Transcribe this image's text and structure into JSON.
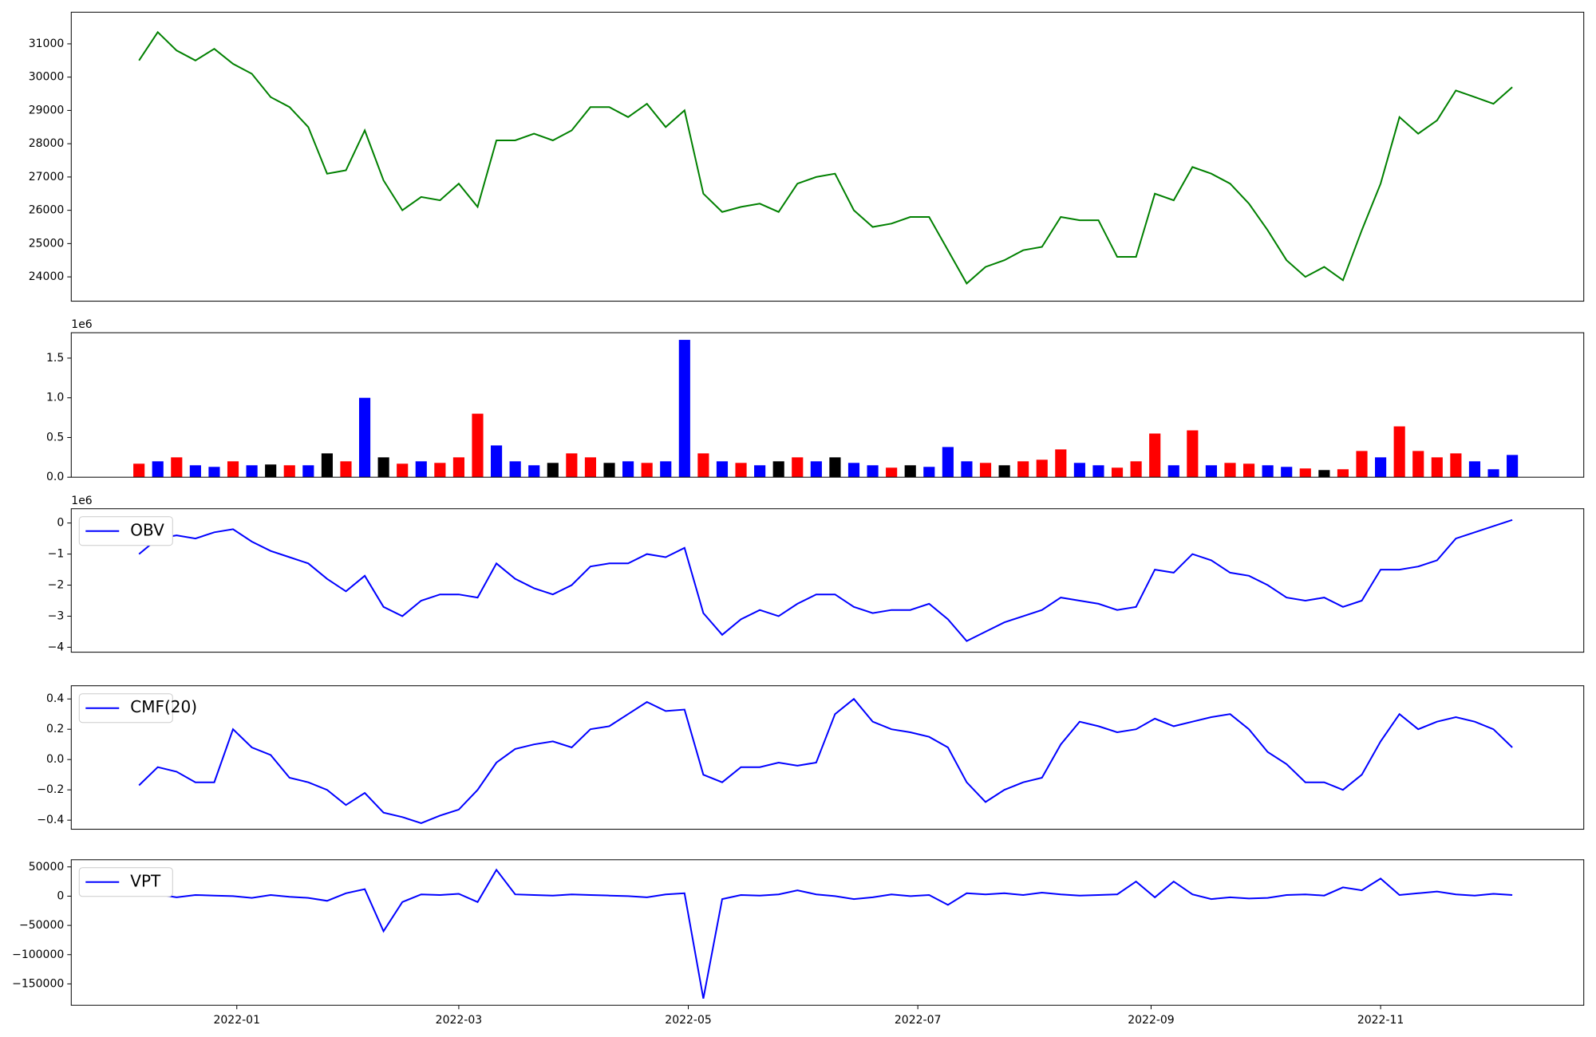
{
  "chart_data": [
    {
      "type": "line",
      "color": "green",
      "x": [
        18967,
        18972,
        18977,
        18982,
        18987,
        18992,
        18997,
        19002,
        19007,
        19012,
        19017,
        19022,
        19027,
        19032,
        19037,
        19042,
        19047,
        19052,
        19057,
        19062,
        19067,
        19072,
        19077,
        19082,
        19087,
        19092,
        19097,
        19102,
        19107,
        19112,
        19117,
        19122,
        19127,
        19132,
        19137,
        19142,
        19147,
        19152,
        19157,
        19162,
        19167,
        19172,
        19177,
        19182,
        19187,
        19192,
        19197,
        19202,
        19207,
        19212,
        19217,
        19222,
        19227,
        19232,
        19237,
        19242,
        19247,
        19252,
        19257,
        19262,
        19267,
        19272,
        19277,
        19282,
        19287,
        19292,
        19297,
        19302,
        19307,
        19312,
        19317,
        19322,
        19327,
        19332
      ],
      "values": [
        30500,
        31350,
        30800,
        30500,
        30850,
        30400,
        30100,
        29400,
        29100,
        28500,
        27100,
        27200,
        28400,
        26900,
        26000,
        26400,
        26300,
        26800,
        26100,
        28100,
        28100,
        28300,
        28100,
        28400,
        29100,
        29100,
        28800,
        29200,
        28500,
        29000,
        26500,
        25950,
        26100,
        26200,
        25950,
        26800,
        27000,
        27100,
        26000,
        25500,
        25600,
        25800,
        25800,
        24800,
        23800,
        24300,
        24500,
        24800,
        24900,
        25800,
        25700,
        25700,
        24600,
        24600,
        26500,
        26300,
        27300,
        27100,
        26800,
        26200,
        25400,
        24500,
        24000,
        24300,
        23900,
        25400,
        26800,
        28800,
        28300,
        28700,
        29600,
        29400,
        29200,
        29700
      ],
      "xlim": [
        18949,
        19351
      ],
      "ylim": [
        23270,
        31950
      ],
      "yticks": [
        24000,
        25000,
        26000,
        27000,
        28000,
        29000,
        30000,
        31000
      ]
    },
    {
      "type": "bar",
      "y_offset_label": "1e6",
      "x": [
        18967,
        18972,
        18977,
        18982,
        18987,
        18992,
        18997,
        19002,
        19007,
        19012,
        19017,
        19022,
        19027,
        19032,
        19037,
        19042,
        19047,
        19052,
        19057,
        19062,
        19067,
        19072,
        19077,
        19082,
        19087,
        19092,
        19097,
        19102,
        19107,
        19112,
        19117,
        19122,
        19127,
        19132,
        19137,
        19142,
        19147,
        19152,
        19157,
        19162,
        19167,
        19172,
        19177,
        19182,
        19187,
        19192,
        19197,
        19202,
        19207,
        19212,
        19217,
        19222,
        19227,
        19232,
        19237,
        19242,
        19247,
        19252,
        19257,
        19262,
        19267,
        19272,
        19277,
        19282,
        19287,
        19292,
        19297,
        19302,
        19307,
        19312,
        19317,
        19322,
        19327,
        19332
      ],
      "values": [
        170000,
        200000,
        250000,
        150000,
        130000,
        200000,
        150000,
        160000,
        150000,
        150000,
        300000,
        200000,
        1000000,
        250000,
        170000,
        200000,
        180000,
        250000,
        800000,
        400000,
        200000,
        150000,
        180000,
        300000,
        250000,
        180000,
        200000,
        180000,
        200000,
        1730000,
        300000,
        200000,
        180000,
        150000,
        200000,
        250000,
        200000,
        250000,
        180000,
        150000,
        120000,
        150000,
        130000,
        380000,
        200000,
        180000,
        150000,
        200000,
        220000,
        350000,
        180000,
        150000,
        120000,
        200000,
        550000,
        150000,
        590000,
        150000,
        180000,
        170000,
        150000,
        130000,
        110000,
        90000,
        100000,
        330000,
        250000,
        640000,
        330000,
        250000,
        300000,
        200000,
        100000,
        280000
      ],
      "colors": [
        "red",
        "blue",
        "red",
        "blue",
        "blue",
        "red",
        "blue",
        "black",
        "red",
        "blue",
        "black",
        "red",
        "blue",
        "black",
        "red",
        "blue",
        "red",
        "red",
        "red",
        "blue",
        "blue",
        "blue",
        "black",
        "red",
        "red",
        "black",
        "blue",
        "red",
        "blue",
        "blue",
        "red",
        "blue",
        "red",
        "blue",
        "black",
        "red",
        "blue",
        "black",
        "blue",
        "blue",
        "red",
        "black",
        "blue",
        "blue",
        "blue",
        "red",
        "black",
        "red",
        "red",
        "red",
        "blue",
        "blue",
        "red",
        "red",
        "red",
        "blue",
        "red",
        "blue",
        "red",
        "red",
        "blue",
        "blue",
        "red",
        "black",
        "red",
        "red",
        "blue",
        "red",
        "red",
        "red",
        "red",
        "blue",
        "blue",
        "blue"
      ],
      "xlim": [
        18949,
        19351
      ],
      "ylim": [
        0,
        1820000
      ],
      "yticks": [
        {
          "value": 0,
          "label": "0.0"
        },
        {
          "value": 500000,
          "label": "0.5"
        },
        {
          "value": 1000000,
          "label": "1.0"
        },
        {
          "value": 1500000,
          "label": "1.5"
        }
      ]
    },
    {
      "type": "line",
      "y_offset_label": "1e6",
      "legend": "upper left",
      "x": [
        18967,
        18972,
        18977,
        18982,
        18987,
        18992,
        18997,
        19002,
        19007,
        19012,
        19017,
        19022,
        19027,
        19032,
        19037,
        19042,
        19047,
        19052,
        19057,
        19062,
        19067,
        19072,
        19077,
        19082,
        19087,
        19092,
        19097,
        19102,
        19107,
        19112,
        19117,
        19122,
        19127,
        19132,
        19137,
        19142,
        19147,
        19152,
        19157,
        19162,
        19167,
        19172,
        19177,
        19182,
        19187,
        19192,
        19197,
        19202,
        19207,
        19212,
        19217,
        19222,
        19227,
        19232,
        19237,
        19242,
        19247,
        19252,
        19257,
        19262,
        19267,
        19272,
        19277,
        19282,
        19287,
        19292,
        19297,
        19302,
        19307,
        19312,
        19317,
        19322,
        19327,
        19332
      ],
      "series": [
        {
          "name": "OBV",
          "color": "blue",
          "values": [
            -1000000,
            -500000,
            -400000,
            -500000,
            -300000,
            -200000,
            -600000,
            -900000,
            -1100000,
            -1300000,
            -1800000,
            -2200000,
            -1700000,
            -2700000,
            -3000000,
            -2500000,
            -2300000,
            -2300000,
            -2400000,
            -1300000,
            -1800000,
            -2100000,
            -2300000,
            -2000000,
            -1400000,
            -1300000,
            -1300000,
            -1000000,
            -1100000,
            -800000,
            -2900000,
            -3600000,
            -3100000,
            -2800000,
            -3000000,
            -2600000,
            -2300000,
            -2300000,
            -2700000,
            -2900000,
            -2800000,
            -2800000,
            -2600000,
            -3100000,
            -3800000,
            -3500000,
            -3200000,
            -3000000,
            -2800000,
            -2400000,
            -2500000,
            -2600000,
            -2800000,
            -2700000,
            -1500000,
            -1600000,
            -1000000,
            -1200000,
            -1600000,
            -1700000,
            -2000000,
            -2400000,
            -2500000,
            -2400000,
            -2700000,
            -2500000,
            -1500000,
            -1500000,
            -1400000,
            -1200000,
            -500000,
            -300000,
            -100000,
            100000
          ]
        }
      ],
      "xlim": [
        18949,
        19351
      ],
      "ylim": [
        -4160000,
        460000
      ],
      "yticks": [
        {
          "value": -4000000,
          "label": "−4"
        },
        {
          "value": -3000000,
          "label": "−3"
        },
        {
          "value": -2000000,
          "label": "−2"
        },
        {
          "value": -1000000,
          "label": "−1"
        },
        0
      ]
    },
    {
      "type": "line",
      "legend": "upper left",
      "x": [
        18967,
        18972,
        18977,
        18982,
        18987,
        18992,
        18997,
        19002,
        19007,
        19012,
        19017,
        19022,
        19027,
        19032,
        19037,
        19042,
        19047,
        19052,
        19057,
        19062,
        19067,
        19072,
        19077,
        19082,
        19087,
        19092,
        19097,
        19102,
        19107,
        19112,
        19117,
        19122,
        19127,
        19132,
        19137,
        19142,
        19147,
        19152,
        19157,
        19162,
        19167,
        19172,
        19177,
        19182,
        19187,
        19192,
        19197,
        19202,
        19207,
        19212,
        19217,
        19222,
        19227,
        19232,
        19237,
        19242,
        19247,
        19252,
        19257,
        19262,
        19267,
        19272,
        19277,
        19282,
        19287,
        19292,
        19297,
        19302,
        19307,
        19312,
        19317,
        19322,
        19327,
        19332
      ],
      "series": [
        {
          "name": "CMF(20)",
          "color": "blue",
          "values": [
            -0.17,
            -0.05,
            -0.08,
            -0.15,
            -0.15,
            0.2,
            0.08,
            0.03,
            -0.12,
            -0.15,
            -0.2,
            -0.3,
            -0.22,
            -0.35,
            -0.38,
            -0.42,
            -0.37,
            -0.33,
            -0.2,
            -0.02,
            0.07,
            0.1,
            0.12,
            0.08,
            0.2,
            0.22,
            0.3,
            0.38,
            0.32,
            0.33,
            -0.1,
            -0.15,
            -0.05,
            -0.05,
            -0.02,
            -0.04,
            -0.02,
            0.3,
            0.4,
            0.25,
            0.2,
            0.18,
            0.15,
            0.08,
            -0.15,
            -0.28,
            -0.2,
            -0.15,
            -0.12,
            0.1,
            0.25,
            0.22,
            0.18,
            0.2,
            0.27,
            0.22,
            0.25,
            0.28,
            0.3,
            0.2,
            0.05,
            -0.03,
            -0.15,
            -0.15,
            -0.2,
            -0.1,
            0.12,
            0.3,
            0.2,
            0.25,
            0.28,
            0.25,
            0.2,
            0.08
          ]
        }
      ],
      "xlim": [
        18949,
        19351
      ],
      "ylim": [
        -0.46,
        0.487
      ],
      "yticks": [
        {
          "value": -0.4,
          "label": "−0.4"
        },
        {
          "value": -0.2,
          "label": "−0.2"
        },
        {
          "value": 0,
          "label": "0.0"
        },
        {
          "value": 0.2,
          "label": "0.2"
        },
        {
          "value": 0.4,
          "label": "0.4"
        }
      ]
    },
    {
      "type": "line",
      "legend": "upper left",
      "x": [
        18967,
        18972,
        18977,
        18982,
        18987,
        18992,
        18997,
        19002,
        19007,
        19012,
        19017,
        19022,
        19027,
        19032,
        19037,
        19042,
        19047,
        19052,
        19057,
        19062,
        19067,
        19072,
        19077,
        19082,
        19087,
        19092,
        19097,
        19102,
        19107,
        19112,
        19117,
        19122,
        19127,
        19132,
        19137,
        19142,
        19147,
        19152,
        19157,
        19162,
        19167,
        19172,
        19177,
        19182,
        19187,
        19192,
        19197,
        19202,
        19207,
        19212,
        19217,
        19222,
        19227,
        19232,
        19237,
        19242,
        19247,
        19252,
        19257,
        19262,
        19267,
        19272,
        19277,
        19282,
        19287,
        19292,
        19297,
        19302,
        19307,
        19312,
        19317,
        19322,
        19327,
        19332
      ],
      "series": [
        {
          "name": "VPT",
          "color": "blue",
          "values": [
            5000,
            3000,
            -2000,
            2000,
            1000,
            0,
            -3000,
            2000,
            -1000,
            -3000,
            -8000,
            5000,
            12000,
            -60000,
            -10000,
            3000,
            2000,
            4000,
            -10000,
            45000,
            3000,
            2000,
            1000,
            3000,
            2000,
            1000,
            0,
            -2000,
            3000,
            5000,
            -175000,
            -5000,
            2000,
            1000,
            3000,
            10000,
            3000,
            0,
            -5000,
            -2000,
            3000,
            0,
            2000,
            -15000,
            5000,
            3000,
            5000,
            2000,
            6000,
            3000,
            1000,
            2000,
            3000,
            25000,
            -2000,
            25000,
            3000,
            -5000,
            -2000,
            -4000,
            -3000,
            2000,
            3000,
            1000,
            15000,
            10000,
            30000,
            2000,
            5000,
            8000,
            3000,
            1000,
            4000,
            2000
          ]
        }
      ],
      "xlim": [
        18949,
        19351
      ],
      "ylim": [
        -186500,
        62200
      ],
      "yticks": [
        {
          "value": -150000,
          "label": "−150000"
        },
        {
          "value": -100000,
          "label": "−100000"
        },
        {
          "value": -50000,
          "label": "−50000"
        },
        0,
        50000
      ],
      "xticks": [
        {
          "value": 18993,
          "label": "2022-01"
        },
        {
          "value": 19052,
          "label": "2022-03"
        },
        {
          "value": 19113,
          "label": "2022-05"
        },
        {
          "value": 19174,
          "label": "2022-07"
        },
        {
          "value": 19236,
          "label": "2022-09"
        },
        {
          "value": 19297,
          "label": "2022-11"
        }
      ]
    }
  ]
}
